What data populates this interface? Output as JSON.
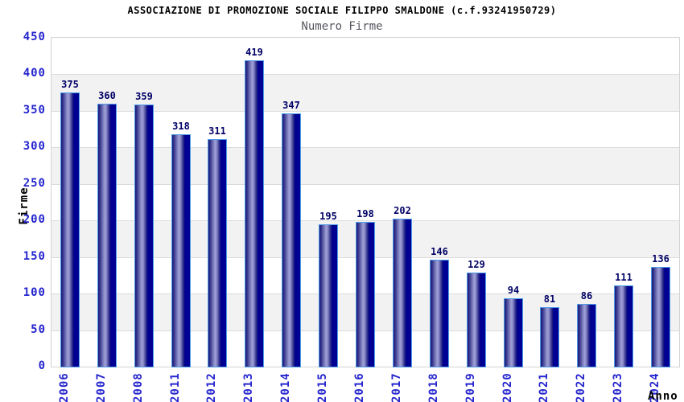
{
  "header": {
    "title": "ASSOCIAZIONE DI PROMOZIONE SOCIALE FILIPPO SMALDONE (c.f.93241950729)",
    "subtitle": "Numero Firme"
  },
  "chart_data": {
    "type": "bar",
    "title": "ASSOCIAZIONE DI PROMOZIONE SOCIALE FILIPPO SMALDONE (c.f.93241950729)",
    "subtitle": "Numero Firme",
    "categories": [
      "2006",
      "2007",
      "2008",
      "2011",
      "2012",
      "2013",
      "2014",
      "2015",
      "2016",
      "2017",
      "2018",
      "2019",
      "2020",
      "2021",
      "2022",
      "2023",
      "2024"
    ],
    "values": [
      375,
      360,
      359,
      318,
      311,
      419,
      347,
      195,
      198,
      202,
      146,
      129,
      94,
      81,
      86,
      111,
      136
    ],
    "xlabel": "Anno",
    "ylabel": "Firme",
    "ylim": [
      0,
      450
    ],
    "ytick_step": 50,
    "grid": true,
    "legend_position": "none",
    "value_labels_shown": true,
    "x_tick_rotation_degrees": 90
  },
  "colors": {
    "title": "#000000",
    "subtitle": "#55555f",
    "axis_tick_label": "#2626cf",
    "value_label": "#000066",
    "bar_border": "#4e9ce8",
    "bar_dark": "#000092",
    "bar_highlight": "#a0a0d8",
    "band_white": "#ffffff",
    "band_gray": "#f2f2f2",
    "grid_line": "#dcdcdc",
    "plot_border": "#d4d4d4"
  }
}
